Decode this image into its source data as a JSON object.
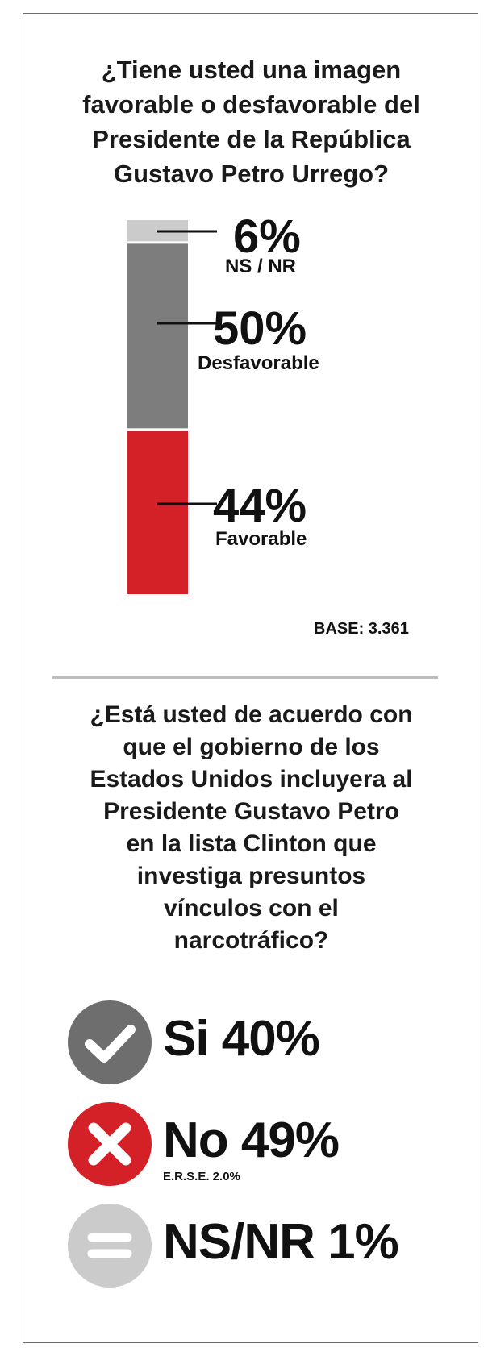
{
  "question1": {
    "lines": [
      "¿Tiene usted una imagen",
      "favorable o desfavorable del",
      "Presidente de la República",
      "Gustavo Petro Urrego?"
    ]
  },
  "chart_data": {
    "type": "bar",
    "stacked": true,
    "categories": [
      "NS / NR",
      "Desfavorable",
      "Favorable"
    ],
    "values": [
      6,
      50,
      44
    ],
    "value_labels": [
      "6%",
      "50%",
      "44%"
    ],
    "colors": [
      "#cbcbcb",
      "#7d7d7d",
      "#d42027"
    ],
    "note": "BASE: 3.361"
  },
  "question2": {
    "lines": [
      "¿Está usted de acuerdo con",
      "que el gobierno de los",
      "Estados Unidos incluyera al",
      "Presidente Gustavo Petro",
      "en la lista Clinton que",
      "investiga presuntos",
      "vínculos con el",
      "narcotráfico?"
    ]
  },
  "answers": [
    {
      "text": "Si 40%",
      "icon": "check-icon",
      "color": "#6e6e6e",
      "note": ""
    },
    {
      "text": "No 49%",
      "icon": "x-icon",
      "color": "#d42027",
      "note": "E.R.S.E. 2.0%"
    },
    {
      "text": "NS/NR 1%",
      "icon": "equals-icon",
      "color": "#cbcbcb",
      "note": ""
    }
  ]
}
